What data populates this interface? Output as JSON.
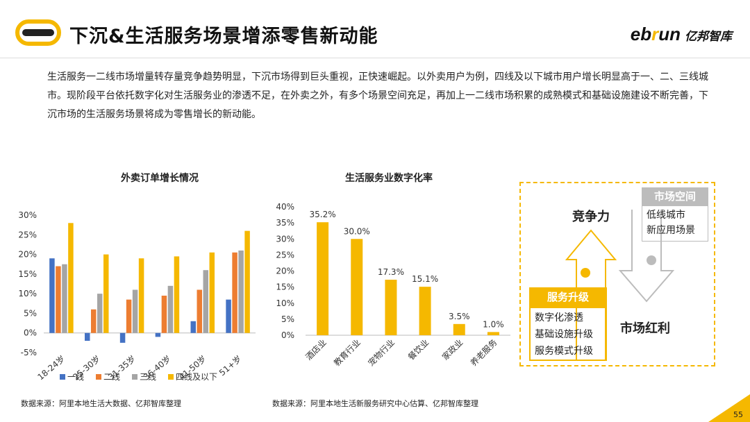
{
  "header": {
    "title": "下沉&生活服务场景增添零售新动能",
    "brand_en_1": "eb",
    "brand_en_2": "r",
    "brand_en_3": "un",
    "brand_cn": "亿邦智库"
  },
  "intro": "生活服务一二线市场增量转存量竞争趋势明显，下沉市场得到巨头重视，正快速崛起。以外卖用户为例，四线及以下城市用户增长明显高于一、二、三线城市。现阶段平台依托数字化对生活服务业的渗透不足，在外卖之外，有多个场景空间充足，再加上一二线市场积累的成熟模式和基础设施建设不断完善，下沉市场的生活服务场景将成为零售增长的新动能。",
  "chart_data": [
    {
      "type": "bar",
      "title": "外卖订单增长情况",
      "categories": [
        "18-24岁",
        "25-30岁",
        "31-35岁",
        "36-40岁",
        "41-50岁",
        "51+岁"
      ],
      "series": [
        {
          "name": "一线",
          "color": "#4472c4",
          "values": [
            19,
            -2,
            -2.5,
            -1,
            3,
            8.5
          ]
        },
        {
          "name": "二线",
          "color": "#ed7d31",
          "values": [
            17,
            6,
            8.5,
            9.5,
            11,
            20.5
          ]
        },
        {
          "name": "三线",
          "color": "#a5a5a5",
          "values": [
            17.5,
            10,
            11,
            12,
            16,
            21
          ]
        },
        {
          "name": "四线及以下",
          "color": "#f5b800",
          "values": [
            28,
            20,
            19,
            19.5,
            20.5,
            26
          ]
        }
      ],
      "ylim": [
        -5,
        30
      ],
      "yticks": [
        "-5%",
        "0%",
        "5%",
        "10%",
        "15%",
        "20%",
        "25%",
        "30%"
      ],
      "legend": "bottom",
      "source": "数据来源：阿里本地生活大数据、亿邦智库整理"
    },
    {
      "type": "bar",
      "title": "生活服务业数字化率",
      "categories": [
        "酒店业",
        "教育行业",
        "宠物行业",
        "餐饮业",
        "家政业",
        "养老服务"
      ],
      "values": [
        35.2,
        30.0,
        17.3,
        15.1,
        3.5,
        1.0
      ],
      "labels": [
        "35.2%",
        "30.0%",
        "17.3%",
        "15.1%",
        "3.5%",
        "1.0%"
      ],
      "color": "#f5b800",
      "ylim": [
        0,
        40
      ],
      "yticks": [
        "0%",
        "5%",
        "10%",
        "15%",
        "20%",
        "25%",
        "30%",
        "35%",
        "40%"
      ],
      "source": "数据来源：阿里本地生活新服务研究中心估算、亿邦智库整理"
    }
  ],
  "diagram": {
    "market_space_tag": "市场空间",
    "market_space_items": [
      "低线城市",
      "新应用场景"
    ],
    "service_upgrade_tag": "服务升级",
    "service_upgrade_items": [
      "数字化渗透",
      "基础设施升级",
      "服务模式升级"
    ],
    "competitiveness": "竞争力",
    "market_dividend": "市场红利"
  },
  "page_number": "55"
}
